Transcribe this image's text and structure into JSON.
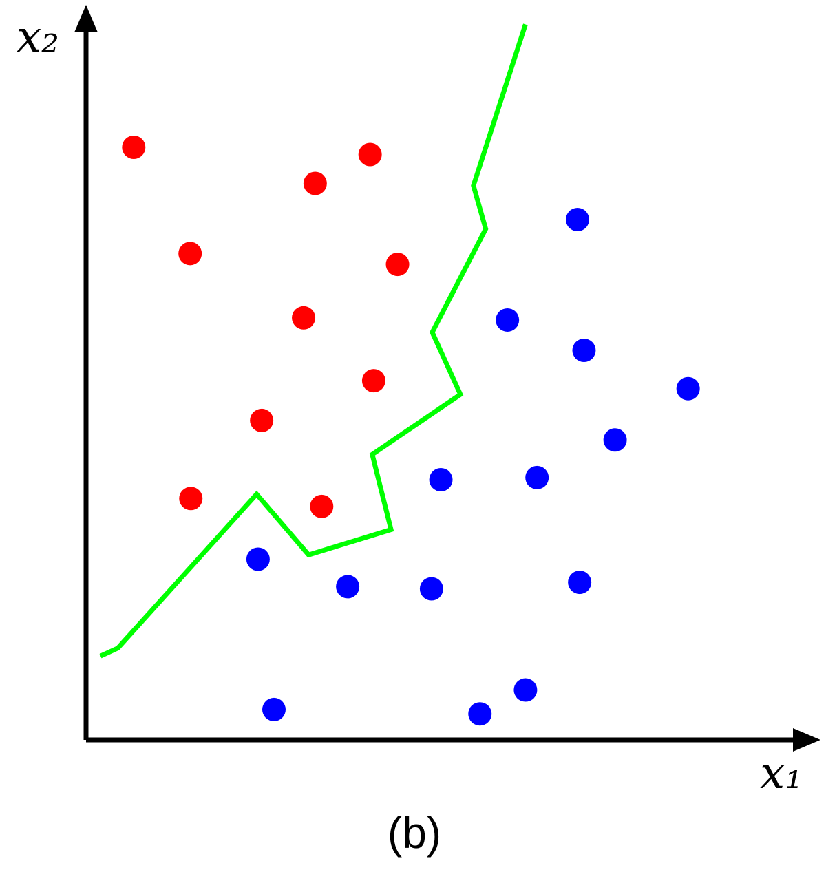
{
  "chart_data": {
    "type": "scatter",
    "xlabel": "x₁",
    "ylabel": "x₂",
    "caption": "(b)",
    "xlim": [
      0,
      100
    ],
    "ylim": [
      0,
      100
    ],
    "series": [
      {
        "color": "#ff0000",
        "x": [
          6.6,
          39.3,
          31.7,
          14.4,
          43.1,
          30.1,
          39.8,
          24.3,
          14.5,
          32.6
        ],
        "values": [
          82.0,
          81.0,
          77.0,
          67.3,
          65.8,
          58.4,
          49.7,
          44.2,
          33.4,
          32.3
        ]
      },
      {
        "color": "#0000ff",
        "x": [
          68.0,
          58.3,
          68.9,
          83.3,
          73.2,
          49.1,
          62.4,
          23.8,
          36.2,
          47.8,
          68.3,
          60.8,
          26.0,
          54.5
        ],
        "values": [
          72.0,
          58.1,
          53.9,
          48.6,
          41.5,
          36.0,
          36.3,
          25.0,
          21.2,
          20.9,
          21.8,
          6.9,
          4.2,
          3.6
        ]
      },
      {
        "type": "line",
        "color": "#00ff00",
        "x": [
          2.0,
          4.4,
          23.6,
          30.8,
          42.2,
          39.6,
          51.8,
          47.9,
          55.3,
          53.6,
          60.8
        ],
        "values": [
          11.6,
          12.7,
          34.0,
          25.6,
          29.1,
          39.5,
          47.8,
          56.4,
          70.7,
          76.7,
          99.0
        ]
      }
    ]
  }
}
